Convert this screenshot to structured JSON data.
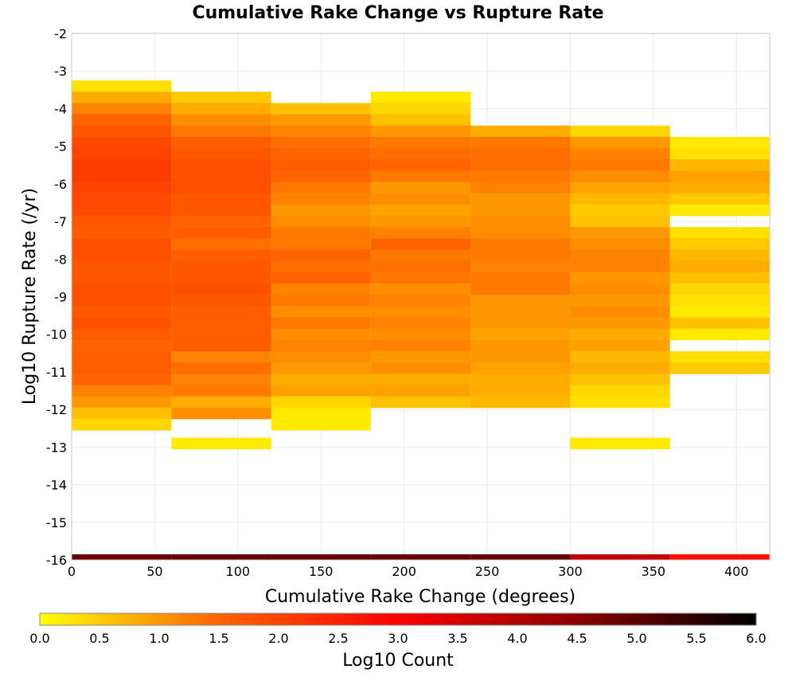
{
  "chart_data": {
    "type": "heatmap",
    "title": "Cumulative Rake Change vs Rupture Rate",
    "xlabel": "Cumulative Rake Change (degrees)",
    "ylabel": "Log10 Rupture Rate (/yr)",
    "xlim": [
      0,
      420
    ],
    "ylim": [
      -16,
      -2
    ],
    "x_ticks": [
      "0",
      "50",
      "100",
      "150",
      "200",
      "250",
      "300",
      "350",
      "400"
    ],
    "y_ticks": [
      "-2",
      "-3",
      "-4",
      "-5",
      "-6",
      "-7",
      "-8",
      "-9",
      "-10",
      "-11",
      "-12",
      "-13",
      "-14",
      "-15",
      "-16"
    ],
    "grid": true,
    "x_bin_edges": [
      0,
      60,
      120,
      180,
      240,
      300,
      360,
      420
    ],
    "y_bin_height": 0.3,
    "colorbar": {
      "label": "Log10 Count",
      "range": [
        0,
        6
      ],
      "ticks": [
        "0.0",
        "0.5",
        "1.0",
        "1.5",
        "2.0",
        "2.5",
        "3.0",
        "3.5",
        "4.0",
        "4.5",
        "5.0",
        "5.5",
        "6.0"
      ],
      "colors": [
        "#ffff00",
        "#ff6400",
        "#ff0000",
        "#8b0000",
        "#000000"
      ]
    },
    "columns": [
      {
        "x_range": [
          0,
          60
        ],
        "bins": [
          {
            "y": -3.4,
            "v": 0.3
          },
          {
            "y": -3.7,
            "v": 0.8
          },
          {
            "y": -4.0,
            "v": 1.2
          },
          {
            "y": -4.3,
            "v": 1.5
          },
          {
            "y": -4.6,
            "v": 1.7
          },
          {
            "y": -4.9,
            "v": 1.9
          },
          {
            "y": -5.2,
            "v": 2.0
          },
          {
            "y": -5.5,
            "v": 2.1
          },
          {
            "y": -5.8,
            "v": 2.1
          },
          {
            "y": -6.1,
            "v": 2.0
          },
          {
            "y": -6.4,
            "v": 1.9
          },
          {
            "y": -6.7,
            "v": 1.9
          },
          {
            "y": -7.0,
            "v": 1.7
          },
          {
            "y": -7.3,
            "v": 1.6
          },
          {
            "y": -7.6,
            "v": 1.8
          },
          {
            "y": -7.9,
            "v": 1.8
          },
          {
            "y": -8.2,
            "v": 1.7
          },
          {
            "y": -8.5,
            "v": 1.7
          },
          {
            "y": -8.8,
            "v": 1.8
          },
          {
            "y": -9.1,
            "v": 1.8
          },
          {
            "y": -9.4,
            "v": 1.7
          },
          {
            "y": -9.7,
            "v": 1.8
          },
          {
            "y": -10.0,
            "v": 1.6
          },
          {
            "y": -10.3,
            "v": 1.5
          },
          {
            "y": -10.6,
            "v": 1.6
          },
          {
            "y": -10.9,
            "v": 1.6
          },
          {
            "y": -11.2,
            "v": 1.5
          },
          {
            "y": -11.5,
            "v": 1.2
          },
          {
            "y": -11.8,
            "v": 1.0
          },
          {
            "y": -12.1,
            "v": 0.6
          },
          {
            "y": -12.4,
            "v": 0.4
          },
          {
            "y": -16.0,
            "v": 4.8
          }
        ]
      },
      {
        "x_range": [
          60,
          120
        ],
        "bins": [
          {
            "y": -3.7,
            "v": 0.5
          },
          {
            "y": -4.0,
            "v": 0.8
          },
          {
            "y": -4.3,
            "v": 1.1
          },
          {
            "y": -4.6,
            "v": 1.3
          },
          {
            "y": -4.9,
            "v": 1.6
          },
          {
            "y": -5.2,
            "v": 1.7
          },
          {
            "y": -5.5,
            "v": 1.8
          },
          {
            "y": -5.8,
            "v": 1.8
          },
          {
            "y": -6.1,
            "v": 1.8
          },
          {
            "y": -6.4,
            "v": 1.7
          },
          {
            "y": -6.7,
            "v": 1.7
          },
          {
            "y": -7.0,
            "v": 1.5
          },
          {
            "y": -7.3,
            "v": 1.6
          },
          {
            "y": -7.6,
            "v": 1.4
          },
          {
            "y": -7.9,
            "v": 1.6
          },
          {
            "y": -8.2,
            "v": 1.7
          },
          {
            "y": -8.5,
            "v": 1.7
          },
          {
            "y": -8.8,
            "v": 1.8
          },
          {
            "y": -9.1,
            "v": 1.7
          },
          {
            "y": -9.4,
            "v": 1.6
          },
          {
            "y": -9.7,
            "v": 1.6
          },
          {
            "y": -10.0,
            "v": 1.6
          },
          {
            "y": -10.3,
            "v": 1.6
          },
          {
            "y": -10.6,
            "v": 1.2
          },
          {
            "y": -10.9,
            "v": 1.4
          },
          {
            "y": -11.2,
            "v": 1.2
          },
          {
            "y": -11.5,
            "v": 1.3
          },
          {
            "y": -11.8,
            "v": 0.8
          },
          {
            "y": -12.1,
            "v": 1.1
          },
          {
            "y": -12.9,
            "v": 0.2
          },
          {
            "y": -16.0,
            "v": 4.9
          }
        ]
      },
      {
        "x_range": [
          120,
          180
        ],
        "bins": [
          {
            "y": -4.0,
            "v": 0.6
          },
          {
            "y": -4.3,
            "v": 1.0
          },
          {
            "y": -4.6,
            "v": 1.2
          },
          {
            "y": -4.9,
            "v": 1.4
          },
          {
            "y": -5.2,
            "v": 1.5
          },
          {
            "y": -5.5,
            "v": 1.6
          },
          {
            "y": -5.8,
            "v": 1.5
          },
          {
            "y": -6.1,
            "v": 1.3
          },
          {
            "y": -6.4,
            "v": 1.2
          },
          {
            "y": -6.7,
            "v": 1.0
          },
          {
            "y": -7.0,
            "v": 1.1
          },
          {
            "y": -7.3,
            "v": 1.3
          },
          {
            "y": -7.6,
            "v": 1.3
          },
          {
            "y": -7.9,
            "v": 1.5
          },
          {
            "y": -8.2,
            "v": 1.4
          },
          {
            "y": -8.5,
            "v": 1.5
          },
          {
            "y": -8.8,
            "v": 1.2
          },
          {
            "y": -9.1,
            "v": 1.3
          },
          {
            "y": -9.4,
            "v": 1.1
          },
          {
            "y": -9.7,
            "v": 1.3
          },
          {
            "y": -10.0,
            "v": 1.1
          },
          {
            "y": -10.3,
            "v": 1.2
          },
          {
            "y": -10.6,
            "v": 1.1
          },
          {
            "y": -10.9,
            "v": 1.0
          },
          {
            "y": -11.2,
            "v": 0.8
          },
          {
            "y": -11.5,
            "v": 0.9
          },
          {
            "y": -11.8,
            "v": 0.4
          },
          {
            "y": -12.1,
            "v": 0.2
          },
          {
            "y": -12.4,
            "v": 0.2
          },
          {
            "y": -16.0,
            "v": 4.9
          }
        ]
      },
      {
        "x_range": [
          180,
          240
        ],
        "bins": [
          {
            "y": -3.7,
            "v": 0.2
          },
          {
            "y": -4.0,
            "v": 0.4
          },
          {
            "y": -4.3,
            "v": 0.6
          },
          {
            "y": -4.6,
            "v": 1.0
          },
          {
            "y": -4.9,
            "v": 1.3
          },
          {
            "y": -5.2,
            "v": 1.4
          },
          {
            "y": -5.5,
            "v": 1.5
          },
          {
            "y": -5.8,
            "v": 1.3
          },
          {
            "y": -6.1,
            "v": 1.0
          },
          {
            "y": -6.4,
            "v": 1.1
          },
          {
            "y": -6.7,
            "v": 0.9
          },
          {
            "y": -7.0,
            "v": 1.0
          },
          {
            "y": -7.3,
            "v": 1.2
          },
          {
            "y": -7.6,
            "v": 1.5
          },
          {
            "y": -7.9,
            "v": 1.3
          },
          {
            "y": -8.2,
            "v": 1.4
          },
          {
            "y": -8.5,
            "v": 1.3
          },
          {
            "y": -8.8,
            "v": 1.1
          },
          {
            "y": -9.1,
            "v": 1.2
          },
          {
            "y": -9.4,
            "v": 1.1
          },
          {
            "y": -9.7,
            "v": 1.2
          },
          {
            "y": -10.0,
            "v": 1.1
          },
          {
            "y": -10.3,
            "v": 1.2
          },
          {
            "y": -10.6,
            "v": 1.0
          },
          {
            "y": -10.9,
            "v": 1.1
          },
          {
            "y": -11.2,
            "v": 0.8
          },
          {
            "y": -11.5,
            "v": 0.9
          },
          {
            "y": -11.8,
            "v": 0.6
          },
          {
            "y": -16.0,
            "v": 4.9
          }
        ]
      },
      {
        "x_range": [
          240,
          300
        ],
        "bins": [
          {
            "y": -4.6,
            "v": 0.8
          },
          {
            "y": -4.9,
            "v": 1.3
          },
          {
            "y": -5.2,
            "v": 1.4
          },
          {
            "y": -5.5,
            "v": 1.4
          },
          {
            "y": -5.8,
            "v": 1.3
          },
          {
            "y": -6.1,
            "v": 1.2
          },
          {
            "y": -6.4,
            "v": 1.0
          },
          {
            "y": -6.7,
            "v": 1.0
          },
          {
            "y": -7.0,
            "v": 1.1
          },
          {
            "y": -7.3,
            "v": 1.1
          },
          {
            "y": -7.6,
            "v": 1.3
          },
          {
            "y": -7.9,
            "v": 1.3
          },
          {
            "y": -8.2,
            "v": 1.2
          },
          {
            "y": -8.5,
            "v": 1.3
          },
          {
            "y": -8.8,
            "v": 1.3
          },
          {
            "y": -9.1,
            "v": 1.0
          },
          {
            "y": -9.4,
            "v": 1.0
          },
          {
            "y": -9.7,
            "v": 1.0
          },
          {
            "y": -10.0,
            "v": 0.9
          },
          {
            "y": -10.3,
            "v": 1.0
          },
          {
            "y": -10.6,
            "v": 1.0
          },
          {
            "y": -10.9,
            "v": 0.9
          },
          {
            "y": -11.2,
            "v": 0.8
          },
          {
            "y": -11.5,
            "v": 0.8
          },
          {
            "y": -11.8,
            "v": 0.7
          },
          {
            "y": -16.0,
            "v": 4.9
          }
        ]
      },
      {
        "x_range": [
          300,
          360
        ],
        "bins": [
          {
            "y": -4.6,
            "v": 0.4
          },
          {
            "y": -4.9,
            "v": 1.0
          },
          {
            "y": -5.2,
            "v": 1.2
          },
          {
            "y": -5.5,
            "v": 1.3
          },
          {
            "y": -5.8,
            "v": 1.1
          },
          {
            "y": -6.1,
            "v": 0.9
          },
          {
            "y": -6.4,
            "v": 0.7
          },
          {
            "y": -6.7,
            "v": 0.5
          },
          {
            "y": -7.0,
            "v": 0.6
          },
          {
            "y": -7.3,
            "v": 1.0
          },
          {
            "y": -7.6,
            "v": 1.1
          },
          {
            "y": -7.9,
            "v": 1.2
          },
          {
            "y": -8.2,
            "v": 1.2
          },
          {
            "y": -8.5,
            "v": 1.0
          },
          {
            "y": -8.8,
            "v": 1.1
          },
          {
            "y": -9.1,
            "v": 1.0
          },
          {
            "y": -9.4,
            "v": 1.1
          },
          {
            "y": -9.7,
            "v": 1.0
          },
          {
            "y": -10.0,
            "v": 0.8
          },
          {
            "y": -10.3,
            "v": 0.9
          },
          {
            "y": -10.6,
            "v": 0.7
          },
          {
            "y": -10.9,
            "v": 0.8
          },
          {
            "y": -11.2,
            "v": 0.6
          },
          {
            "y": -11.5,
            "v": 0.4
          },
          {
            "y": -11.8,
            "v": 0.3
          },
          {
            "y": -12.9,
            "v": 0.2
          },
          {
            "y": -16.0,
            "v": 3.8
          }
        ]
      },
      {
        "x_range": [
          360,
          420
        ],
        "bins": [
          {
            "y": -4.9,
            "v": 0.2
          },
          {
            "y": -5.2,
            "v": 0.3
          },
          {
            "y": -5.5,
            "v": 0.7
          },
          {
            "y": -5.8,
            "v": 0.9
          },
          {
            "y": -6.1,
            "v": 0.8
          },
          {
            "y": -6.4,
            "v": 0.5
          },
          {
            "y": -6.7,
            "v": 0.2
          },
          {
            "y": -7.3,
            "v": 0.3
          },
          {
            "y": -7.6,
            "v": 0.5
          },
          {
            "y": -7.9,
            "v": 0.7
          },
          {
            "y": -8.2,
            "v": 0.8
          },
          {
            "y": -8.5,
            "v": 0.6
          },
          {
            "y": -8.8,
            "v": 0.4
          },
          {
            "y": -9.1,
            "v": 0.3
          },
          {
            "y": -9.4,
            "v": 0.2
          },
          {
            "y": -9.7,
            "v": 0.6
          },
          {
            "y": -10.0,
            "v": 0.2
          },
          {
            "y": -10.6,
            "v": 0.3
          },
          {
            "y": -10.9,
            "v": 0.5
          },
          {
            "y": -16.0,
            "v": 2.8
          }
        ]
      }
    ]
  }
}
